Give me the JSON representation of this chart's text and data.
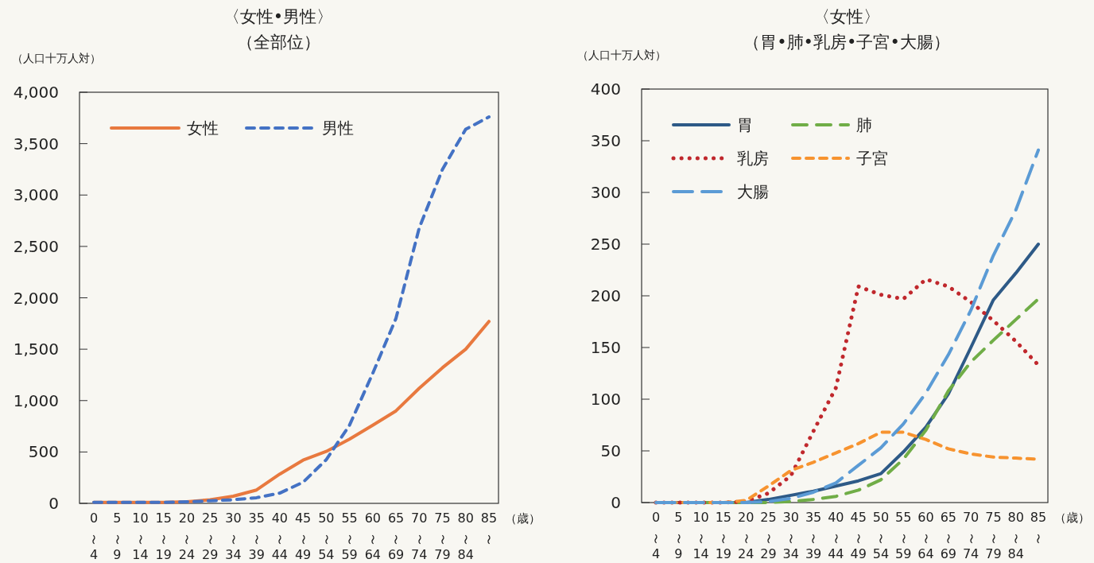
{
  "chart_data": [
    {
      "type": "line",
      "title": "〈女性•男性〉",
      "subtitle": "（全部位）",
      "ylabel": "（人口十万人対）",
      "xlabel": "（歳）",
      "categories": [
        "0〜4",
        "5〜9",
        "10〜14",
        "15〜19",
        "20〜24",
        "25〜29",
        "30〜34",
        "35〜39",
        "40〜44",
        "45〜49",
        "50〜54",
        "55〜59",
        "60〜64",
        "65〜69",
        "70〜74",
        "75〜79",
        "80〜84",
        "85〜"
      ],
      "ylim": [
        0,
        4000
      ],
      "yticks": [
        {
          "value": 0,
          "label": "0"
        },
        {
          "value": 500,
          "label": "500"
        },
        {
          "value": 1000,
          "label": "1,000"
        },
        {
          "value": 1500,
          "label": "1,500"
        },
        {
          "value": 2000,
          "label": "2,000"
        },
        {
          "value": 2500,
          "label": "2,500"
        },
        {
          "value": 3000,
          "label": "3,000"
        },
        {
          "value": 3500,
          "label": "3,500"
        },
        {
          "value": 4000,
          "label": "4,000"
        }
      ],
      "legend": "top left",
      "grid": false,
      "series": [
        {
          "name": "女性",
          "color": "#e8793f",
          "line_style": "solid",
          "values": [
            10,
            10,
            10,
            10,
            15,
            35,
            70,
            130,
            285,
            420,
            505,
            625,
            760,
            900,
            1120,
            1320,
            1500,
            1770
          ]
        },
        {
          "name": "男性",
          "color": "#4472c4",
          "line_style": "dashed",
          "values": [
            10,
            10,
            10,
            10,
            15,
            25,
            35,
            55,
            100,
            205,
            425,
            760,
            1265,
            1800,
            2680,
            3250,
            3640,
            3760
          ]
        }
      ]
    },
    {
      "type": "line",
      "title": "〈女性〉",
      "subtitle": "（胃•肺•乳房•子宮•大腸）",
      "ylabel": "（人口十万人対）",
      "xlabel": "（歳）",
      "categories": [
        "0〜4",
        "5〜9",
        "10〜14",
        "15〜19",
        "20〜24",
        "25〜29",
        "30〜34",
        "35〜39",
        "40〜44",
        "45〜49",
        "50〜54",
        "55〜59",
        "60〜64",
        "65〜69",
        "70〜74",
        "75〜79",
        "80〜84",
        "85〜"
      ],
      "ylim": [
        0,
        400
      ],
      "yticks": [
        0,
        50,
        100,
        150,
        200,
        250,
        300,
        350,
        400
      ],
      "legend": "top left",
      "grid": false,
      "series": [
        {
          "name": "胃",
          "color": "#2e5a87",
          "line_style": "solid",
          "values": [
            0,
            0,
            0,
            0,
            0,
            3,
            7,
            11,
            16,
            21,
            28,
            49,
            73,
            105,
            150,
            196,
            222,
            250
          ]
        },
        {
          "name": "肺",
          "color": "#70ad47",
          "line_style": "dashed",
          "values": [
            0,
            0,
            0,
            0,
            0,
            0,
            1,
            3,
            6,
            12,
            22,
            42,
            70,
            108,
            136,
            157,
            177,
            197
          ]
        },
        {
          "name": "乳房",
          "color": "#c0282d",
          "line_style": "dotted",
          "values": [
            0,
            0,
            0,
            0,
            1,
            9,
            26,
            69,
            111,
            209,
            201,
            197,
            216,
            209,
            194,
            176,
            156,
            133
          ]
        },
        {
          "name": "子宮",
          "color": "#f7932f",
          "line_style": "dashed",
          "values": [
            0,
            0,
            0,
            0,
            2,
            16,
            31,
            39,
            48,
            57,
            68,
            68,
            61,
            52,
            47,
            44,
            43,
            42
          ]
        },
        {
          "name": "大腸",
          "color": "#5b9bd5",
          "line_style": "dashed",
          "values": [
            0,
            0,
            0,
            0,
            0,
            1,
            4,
            10,
            19,
            36,
            53,
            76,
            106,
            143,
            186,
            239,
            283,
            341
          ]
        }
      ]
    }
  ]
}
